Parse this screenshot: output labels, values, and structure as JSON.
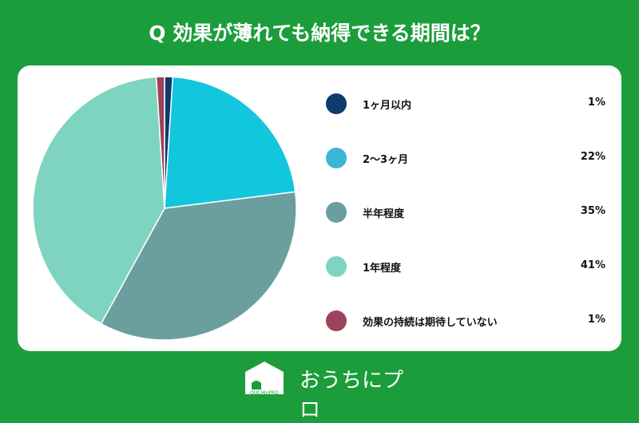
{
  "chart_data": {
    "type": "pie",
    "title": "Q 効果が薄れても納得できる期間は？",
    "categories": [
      "1ヶ月以内",
      "2〜3ヶ月",
      "半年程度",
      "1年程度",
      "効果の持続は期待していない"
    ],
    "values": [
      1,
      22,
      35,
      41,
      1
    ],
    "labels": [
      "1%",
      "22%",
      "35%",
      "41%",
      "1%"
    ],
    "colors": [
      "#0f3a6c",
      "#12c6dd",
      "#6b9f9f",
      "#7fd4c1",
      "#9c4259"
    ],
    "legend_colors": [
      "#0f3a6c",
      "#3cb6d6",
      "#6b9f9f",
      "#7fd4c1",
      "#9c4259"
    ],
    "legend": "right",
    "start": "top",
    "direction": "clockwise"
  },
  "brand": {
    "name": "おうちにプロ",
    "logo_text": "OUCHInPRO"
  }
}
